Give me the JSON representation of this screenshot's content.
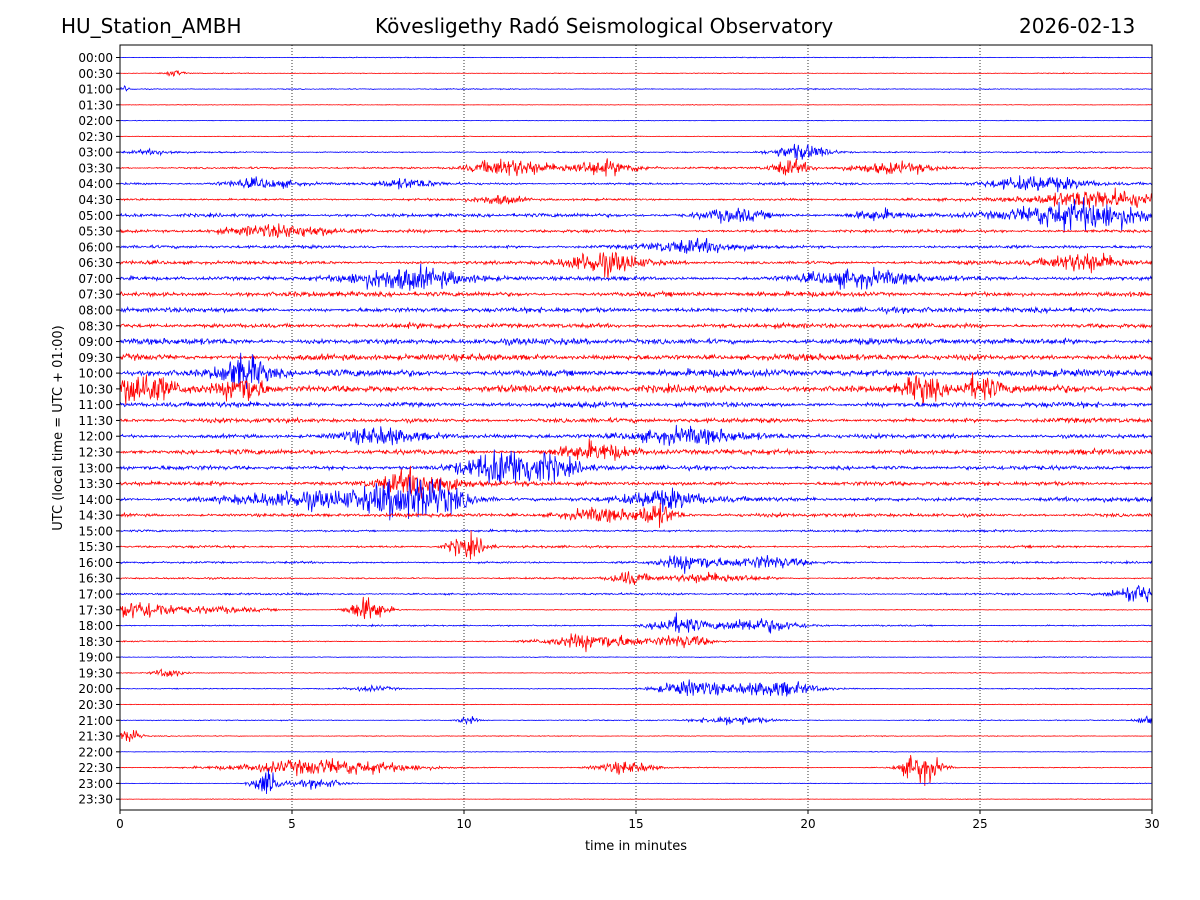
{
  "header": {
    "station": "HU_Station_AMBH",
    "observatory": "Kövesligethy Radó Seismological Observatory",
    "date": "2026-02-13"
  },
  "chart_data": {
    "type": "line",
    "title": "Kövesligethy Radó Seismological Observatory",
    "xlabel": "time in minutes",
    "ylabel": "UTC (local time = UTC + 01:00)",
    "xlim": [
      0,
      30
    ],
    "xticks": [
      0,
      5,
      10,
      15,
      20,
      25,
      30
    ],
    "grid": "vertical-dotted",
    "colors": [
      "#0000ff",
      "#ff0000"
    ],
    "rows": [
      "00:00",
      "00:30",
      "01:00",
      "01:30",
      "02:00",
      "02:30",
      "03:00",
      "03:30",
      "04:00",
      "04:30",
      "05:00",
      "05:30",
      "06:00",
      "06:30",
      "07:00",
      "07:30",
      "08:00",
      "08:30",
      "09:00",
      "09:30",
      "10:00",
      "10:30",
      "11:00",
      "11:30",
      "12:00",
      "12:30",
      "13:00",
      "13:30",
      "14:00",
      "14:30",
      "15:00",
      "15:30",
      "16:00",
      "16:30",
      "17:00",
      "17:30",
      "18:00",
      "18:30",
      "19:00",
      "19:30",
      "20:00",
      "20:30",
      "21:00",
      "21:30",
      "22:00",
      "22:30",
      "23:00",
      "23:30"
    ],
    "noise_level": [
      0.6,
      0.5,
      0.7,
      0.4,
      0.4,
      0.5,
      1.0,
      1.3,
      1.7,
      1.6,
      2.6,
      2.2,
      2.2,
      2.6,
      3.0,
      3.6,
      3.6,
      3.6,
      4.4,
      4.6,
      5.2,
      5.6,
      3.8,
      3.2,
      3.2,
      3.6,
      3.0,
      3.0,
      3.2,
      2.6,
      1.5,
      1.6,
      1.5,
      1.2,
      1.4,
      0.6,
      1.0,
      0.8,
      0.6,
      0.6,
      0.7,
      0.5,
      0.7,
      0.6,
      0.5,
      0.6,
      0.5,
      0.4
    ],
    "events": [
      {
        "row": 1,
        "t": 1.6,
        "amp": 4,
        "dur": 0.4
      },
      {
        "row": 2,
        "t": 0.1,
        "amp": 4,
        "dur": 0.3
      },
      {
        "row": 6,
        "t": 19.8,
        "amp": 10,
        "dur": 1.2
      },
      {
        "row": 6,
        "t": 1.0,
        "amp": 3,
        "dur": 1.0
      },
      {
        "row": 7,
        "t": 11.3,
        "amp": 12,
        "dur": 1.6
      },
      {
        "row": 7,
        "t": 14.0,
        "amp": 9,
        "dur": 1.6
      },
      {
        "row": 7,
        "t": 19.5,
        "amp": 10,
        "dur": 0.8
      },
      {
        "row": 7,
        "t": 22.5,
        "amp": 7,
        "dur": 2.0
      },
      {
        "row": 8,
        "t": 4.0,
        "amp": 6,
        "dur": 1.5
      },
      {
        "row": 8,
        "t": 8.3,
        "amp": 6,
        "dur": 1.2
      },
      {
        "row": 8,
        "t": 26.7,
        "amp": 10,
        "dur": 2.0
      },
      {
        "row": 9,
        "t": 28.5,
        "amp": 12,
        "dur": 3.0
      },
      {
        "row": 9,
        "t": 11.0,
        "amp": 6,
        "dur": 1.0
      },
      {
        "row": 10,
        "t": 17.8,
        "amp": 8,
        "dur": 1.4
      },
      {
        "row": 10,
        "t": 22.0,
        "amp": 6,
        "dur": 1.0
      },
      {
        "row": 10,
        "t": 28.0,
        "amp": 18,
        "dur": 3.0
      },
      {
        "row": 11,
        "t": 4.8,
        "amp": 8,
        "dur": 2.4
      },
      {
        "row": 12,
        "t": 16.8,
        "amp": 8,
        "dur": 2.0
      },
      {
        "row": 13,
        "t": 14.0,
        "amp": 14,
        "dur": 1.6
      },
      {
        "row": 13,
        "t": 28.0,
        "amp": 12,
        "dur": 1.6
      },
      {
        "row": 14,
        "t": 8.2,
        "amp": 14,
        "dur": 2.4
      },
      {
        "row": 14,
        "t": 21.5,
        "amp": 10,
        "dur": 2.4
      },
      {
        "row": 20,
        "t": 3.6,
        "amp": 20,
        "dur": 1.0
      },
      {
        "row": 21,
        "t": 0.6,
        "amp": 20,
        "dur": 1.2
      },
      {
        "row": 21,
        "t": 3.6,
        "amp": 18,
        "dur": 0.8
      },
      {
        "row": 21,
        "t": 23.3,
        "amp": 16,
        "dur": 0.8
      },
      {
        "row": 21,
        "t": 25.0,
        "amp": 14,
        "dur": 0.8
      },
      {
        "row": 24,
        "t": 7.5,
        "amp": 10,
        "dur": 1.6
      },
      {
        "row": 24,
        "t": 16.5,
        "amp": 10,
        "dur": 2.4
      },
      {
        "row": 25,
        "t": 13.8,
        "amp": 10,
        "dur": 1.6
      },
      {
        "row": 26,
        "t": 11.5,
        "amp": 24,
        "dur": 2.2
      },
      {
        "row": 27,
        "t": 8.7,
        "amp": 18,
        "dur": 1.6
      },
      {
        "row": 28,
        "t": 8.6,
        "amp": 26,
        "dur": 2.0
      },
      {
        "row": 28,
        "t": 15.8,
        "amp": 12,
        "dur": 1.6
      },
      {
        "row": 28,
        "t": 5.5,
        "amp": 10,
        "dur": 3.0
      },
      {
        "row": 29,
        "t": 14.0,
        "amp": 8,
        "dur": 1.6
      },
      {
        "row": 29,
        "t": 15.6,
        "amp": 14,
        "dur": 0.8
      },
      {
        "row": 31,
        "t": 10.1,
        "amp": 14,
        "dur": 0.8
      },
      {
        "row": 32,
        "t": 16.6,
        "amp": 10,
        "dur": 1.2
      },
      {
        "row": 32,
        "t": 18.8,
        "amp": 8,
        "dur": 1.6
      },
      {
        "row": 33,
        "t": 14.8,
        "amp": 8,
        "dur": 0.8
      },
      {
        "row": 33,
        "t": 17.2,
        "amp": 6,
        "dur": 2.0
      },
      {
        "row": 34,
        "t": 29.6,
        "amp": 12,
        "dur": 1.0
      },
      {
        "row": 35,
        "t": 0.5,
        "amp": 12,
        "dur": 1.6
      },
      {
        "row": 35,
        "t": 7.2,
        "amp": 16,
        "dur": 0.8
      },
      {
        "row": 35,
        "t": 2.8,
        "amp": 4,
        "dur": 2.0
      },
      {
        "row": 36,
        "t": 16.2,
        "amp": 12,
        "dur": 1.0
      },
      {
        "row": 36,
        "t": 18.5,
        "amp": 9,
        "dur": 1.8
      },
      {
        "row": 37,
        "t": 13.8,
        "amp": 10,
        "dur": 2.0
      },
      {
        "row": 37,
        "t": 16.4,
        "amp": 8,
        "dur": 1.2
      },
      {
        "row": 39,
        "t": 1.4,
        "amp": 6,
        "dur": 0.6
      },
      {
        "row": 40,
        "t": 16.6,
        "amp": 10,
        "dur": 1.4
      },
      {
        "row": 40,
        "t": 19.0,
        "amp": 10,
        "dur": 1.8
      },
      {
        "row": 40,
        "t": 7.3,
        "amp": 3,
        "dur": 1.0
      },
      {
        "row": 42,
        "t": 10.1,
        "amp": 5,
        "dur": 0.4
      },
      {
        "row": 42,
        "t": 17.8,
        "amp": 6,
        "dur": 1.4
      },
      {
        "row": 42,
        "t": 29.8,
        "amp": 6,
        "dur": 0.4
      },
      {
        "row": 43,
        "t": 0.3,
        "amp": 10,
        "dur": 0.4
      },
      {
        "row": 45,
        "t": 6.0,
        "amp": 10,
        "dur": 3.6
      },
      {
        "row": 45,
        "t": 14.7,
        "amp": 8,
        "dur": 1.2
      },
      {
        "row": 45,
        "t": 23.3,
        "amp": 20,
        "dur": 0.8
      },
      {
        "row": 46,
        "t": 4.3,
        "amp": 16,
        "dur": 0.6
      },
      {
        "row": 46,
        "t": 5.8,
        "amp": 6,
        "dur": 1.0
      }
    ]
  }
}
